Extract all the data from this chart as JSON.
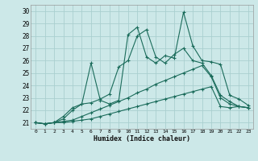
{
  "xlabel": "Humidex (Indice chaleur)",
  "xlim": [
    -0.5,
    23.5
  ],
  "ylim": [
    20.5,
    30.5
  ],
  "xticks": [
    0,
    1,
    2,
    3,
    4,
    5,
    6,
    7,
    8,
    9,
    10,
    11,
    12,
    13,
    14,
    15,
    16,
    17,
    18,
    19,
    20,
    21,
    22,
    23
  ],
  "yticks": [
    21,
    22,
    23,
    24,
    25,
    26,
    27,
    28,
    29,
    30
  ],
  "background_color": "#cce8e8",
  "grid_color": "#aacfcf",
  "line_color": "#1a6b5a",
  "lines": [
    [
      21.0,
      20.9,
      21.0,
      21.0,
      21.1,
      21.2,
      21.3,
      21.5,
      21.7,
      21.9,
      22.1,
      22.3,
      22.5,
      22.7,
      22.9,
      23.1,
      23.3,
      23.5,
      23.7,
      23.9,
      22.3,
      22.2,
      22.3,
      22.2
    ],
    [
      21.0,
      20.9,
      21.0,
      21.1,
      21.2,
      21.5,
      21.8,
      22.1,
      22.4,
      22.7,
      23.0,
      23.4,
      23.7,
      24.1,
      24.4,
      24.7,
      25.0,
      25.3,
      25.6,
      24.7,
      23.0,
      22.5,
      22.3,
      22.2
    ],
    [
      21.0,
      20.9,
      21.0,
      21.5,
      22.2,
      22.5,
      25.8,
      22.8,
      22.5,
      22.8,
      28.1,
      28.7,
      26.3,
      25.8,
      26.4,
      26.2,
      29.9,
      27.2,
      26.0,
      25.9,
      25.7,
      23.2,
      22.9,
      22.4
    ],
    [
      21.0,
      20.9,
      21.0,
      21.3,
      22.0,
      22.5,
      22.6,
      22.9,
      23.3,
      25.5,
      26.0,
      28.0,
      28.5,
      26.3,
      25.8,
      26.5,
      27.0,
      26.0,
      25.8,
      24.8,
      23.2,
      22.7,
      22.3,
      22.2
    ]
  ]
}
